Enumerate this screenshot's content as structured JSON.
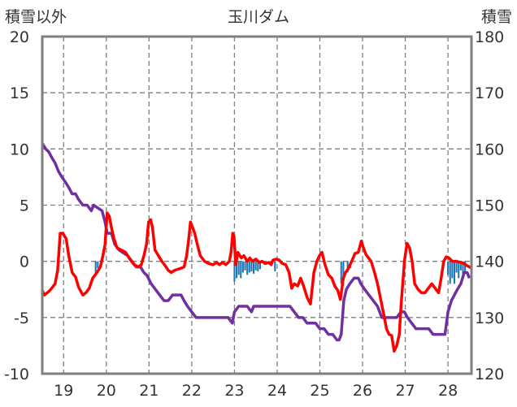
{
  "chart_data": {
    "type": "line",
    "title": "玉川ダム",
    "left_axis": {
      "label": "積雪以外",
      "ticks": [
        20,
        15,
        10,
        5,
        0,
        -5,
        -10
      ],
      "range": [
        -10,
        20
      ]
    },
    "right_axis": {
      "label": "積雪",
      "ticks": [
        180,
        170,
        160,
        150,
        140,
        130,
        120
      ],
      "range": [
        120,
        180
      ]
    },
    "x_axis": {
      "ticks": [
        "19",
        "20",
        "21",
        "22",
        "23",
        "24",
        "25",
        "26",
        "27",
        "28"
      ],
      "range": [
        18.5,
        28.55
      ]
    },
    "grid": true,
    "colors": {
      "red_series": "#ff0000",
      "purple_series": "#7030a0",
      "blue_series": "#1f77b4",
      "axis": "#7f7f7f"
    },
    "series": [
      {
        "axis": "left",
        "points": [
          [
            18.5,
            -2.6
          ],
          [
            18.55,
            -3.0
          ],
          [
            18.65,
            -2.7
          ],
          [
            18.72,
            -2.4
          ],
          [
            18.8,
            -2.0
          ],
          [
            18.86,
            -0.8
          ],
          [
            18.92,
            2.5
          ],
          [
            18.98,
            2.5
          ],
          [
            19.06,
            2.0
          ],
          [
            19.12,
            0.5
          ],
          [
            19.2,
            -1.0
          ],
          [
            19.28,
            -1.4
          ],
          [
            19.35,
            -2.3
          ],
          [
            19.45,
            -3.0
          ],
          [
            19.52,
            -2.8
          ],
          [
            19.6,
            -2.4
          ],
          [
            19.68,
            -1.5
          ],
          [
            19.78,
            -1.0
          ],
          [
            19.86,
            -0.5
          ],
          [
            19.92,
            0.5
          ],
          [
            19.97,
            1.5
          ],
          [
            20.02,
            4.3
          ],
          [
            20.07,
            4.0
          ],
          [
            20.12,
            3.0
          ],
          [
            20.18,
            2.0
          ],
          [
            20.25,
            1.2
          ],
          [
            20.35,
            1.0
          ],
          [
            20.45,
            0.8
          ],
          [
            20.55,
            0.2
          ],
          [
            20.65,
            -0.3
          ],
          [
            20.75,
            -0.5
          ],
          [
            20.82,
            -0.3
          ],
          [
            20.88,
            0.5
          ],
          [
            20.94,
            1.5
          ],
          [
            20.99,
            3.5
          ],
          [
            21.04,
            3.7
          ],
          [
            21.08,
            3.0
          ],
          [
            21.14,
            1.0
          ],
          [
            21.22,
            0.5
          ],
          [
            21.3,
            0.0
          ],
          [
            21.38,
            -0.4
          ],
          [
            21.45,
            -0.8
          ],
          [
            21.52,
            -1.0
          ],
          [
            21.6,
            -0.8
          ],
          [
            21.68,
            -0.7
          ],
          [
            21.76,
            -0.6
          ],
          [
            21.82,
            -0.5
          ],
          [
            21.88,
            0.5
          ],
          [
            21.93,
            2.0
          ],
          [
            21.97,
            3.5
          ],
          [
            22.02,
            3.0
          ],
          [
            22.07,
            2.5
          ],
          [
            22.13,
            1.5
          ],
          [
            22.2,
            0.5
          ],
          [
            22.3,
            0.0
          ],
          [
            22.4,
            -0.2
          ],
          [
            22.5,
            -0.3
          ],
          [
            22.58,
            -0.1
          ],
          [
            22.65,
            -0.3
          ],
          [
            22.72,
            -0.1
          ],
          [
            22.8,
            -0.3
          ],
          [
            22.88,
            0.0
          ],
          [
            22.92,
            0.8
          ],
          [
            22.96,
            2.5
          ],
          [
            22.99,
            2.2
          ],
          [
            23.03,
            -0.3
          ],
          [
            23.08,
            0.8
          ],
          [
            23.16,
            0.3
          ],
          [
            23.22,
            0.5
          ],
          [
            23.3,
            0.0
          ],
          [
            23.36,
            0.3
          ],
          [
            23.42,
            0.0
          ],
          [
            23.5,
            0.2
          ],
          [
            23.58,
            -0.1
          ],
          [
            23.65,
            0.0
          ],
          [
            23.72,
            -0.2
          ],
          [
            23.8,
            -0.1
          ],
          [
            23.86,
            -0.3
          ],
          [
            23.9,
            0.1
          ],
          [
            23.98,
            0.2
          ],
          [
            24.05,
            0.1
          ],
          [
            24.12,
            -0.2
          ],
          [
            24.2,
            -0.3
          ],
          [
            24.28,
            -1.0
          ],
          [
            24.34,
            -2.4
          ],
          [
            24.4,
            -2.0
          ],
          [
            24.48,
            -2.2
          ],
          [
            24.55,
            -1.5
          ],
          [
            24.62,
            -2.2
          ],
          [
            24.7,
            -3.2
          ],
          [
            24.78,
            -3.8
          ],
          [
            24.86,
            -1.0
          ],
          [
            24.93,
            0.0
          ],
          [
            24.99,
            0.5
          ],
          [
            25.05,
            0.8
          ],
          [
            25.12,
            -0.3
          ],
          [
            25.2,
            -1.2
          ],
          [
            25.28,
            -1.5
          ],
          [
            25.35,
            -2.2
          ],
          [
            25.42,
            -2.6
          ],
          [
            25.48,
            -3.4
          ],
          [
            25.55,
            -1.5
          ],
          [
            25.6,
            -1.0
          ],
          [
            25.66,
            -0.7
          ],
          [
            25.72,
            -0.2
          ],
          [
            25.78,
            0.3
          ],
          [
            25.82,
            0.7
          ],
          [
            25.9,
            0.8
          ],
          [
            25.97,
            1.8
          ],
          [
            26.02,
            1.2
          ],
          [
            26.08,
            0.6
          ],
          [
            26.14,
            0.3
          ],
          [
            26.2,
            0.0
          ],
          [
            26.28,
            -1.0
          ],
          [
            26.35,
            -2.0
          ],
          [
            26.42,
            -3.3
          ],
          [
            26.5,
            -4.8
          ],
          [
            26.56,
            -6.0
          ],
          [
            26.62,
            -6.5
          ],
          [
            26.68,
            -6.6
          ],
          [
            26.74,
            -8.0
          ],
          [
            26.8,
            -7.5
          ],
          [
            26.86,
            -6.5
          ],
          [
            26.9,
            -4.0
          ],
          [
            26.94,
            -2.0
          ],
          [
            26.98,
            0.0
          ],
          [
            27.04,
            1.6
          ],
          [
            27.1,
            1.2
          ],
          [
            27.16,
            0.0
          ],
          [
            27.22,
            -2.0
          ],
          [
            27.3,
            -2.5
          ],
          [
            27.38,
            -2.8
          ],
          [
            27.46,
            -2.8
          ],
          [
            27.54,
            -2.4
          ],
          [
            27.62,
            -2.0
          ],
          [
            27.7,
            -2.4
          ],
          [
            27.78,
            -2.8
          ],
          [
            27.84,
            -1.5
          ],
          [
            27.9,
            0.0
          ],
          [
            27.96,
            0.4
          ],
          [
            28.02,
            0.3
          ],
          [
            28.1,
            0.0
          ],
          [
            28.2,
            0.0
          ],
          [
            28.3,
            -0.1
          ],
          [
            28.38,
            -0.2
          ],
          [
            28.45,
            -0.4
          ],
          [
            28.55,
            -0.6
          ]
        ]
      },
      {
        "axis": "right",
        "points": [
          [
            18.5,
            161
          ],
          [
            18.58,
            160
          ],
          [
            18.65,
            159.5
          ],
          [
            18.72,
            158.5
          ],
          [
            18.8,
            157.5
          ],
          [
            18.88,
            156
          ],
          [
            18.96,
            155
          ],
          [
            19.05,
            154
          ],
          [
            19.13,
            153
          ],
          [
            19.2,
            152
          ],
          [
            19.28,
            152
          ],
          [
            19.35,
            151
          ],
          [
            19.45,
            150
          ],
          [
            19.55,
            150
          ],
          [
            19.65,
            149
          ],
          [
            19.7,
            150
          ],
          [
            19.8,
            149.5
          ],
          [
            19.9,
            149
          ],
          [
            19.97,
            147
          ],
          [
            20.02,
            145
          ],
          [
            20.06,
            145
          ],
          [
            20.12,
            145
          ],
          [
            20.2,
            143
          ],
          [
            20.3,
            142
          ],
          [
            20.4,
            141.5
          ],
          [
            20.5,
            141
          ],
          [
            20.6,
            140
          ],
          [
            20.7,
            139
          ],
          [
            20.8,
            139
          ],
          [
            20.88,
            138
          ],
          [
            20.95,
            137.5
          ],
          [
            21.05,
            136
          ],
          [
            21.15,
            135
          ],
          [
            21.25,
            134
          ],
          [
            21.35,
            133
          ],
          [
            21.45,
            133
          ],
          [
            21.55,
            134
          ],
          [
            21.65,
            134
          ],
          [
            21.75,
            134
          ],
          [
            21.82,
            133
          ],
          [
            21.9,
            132
          ],
          [
            22.0,
            131
          ],
          [
            22.1,
            130
          ],
          [
            22.3,
            130
          ],
          [
            22.5,
            130
          ],
          [
            22.7,
            130
          ],
          [
            22.85,
            130
          ],
          [
            22.95,
            129
          ],
          [
            23.0,
            131
          ],
          [
            23.1,
            132
          ],
          [
            23.2,
            132
          ],
          [
            23.3,
            132
          ],
          [
            23.4,
            131
          ],
          [
            23.45,
            132
          ],
          [
            23.5,
            132
          ],
          [
            23.7,
            132
          ],
          [
            23.9,
            132
          ],
          [
            24.1,
            132
          ],
          [
            24.3,
            132
          ],
          [
            24.4,
            131
          ],
          [
            24.5,
            130
          ],
          [
            24.6,
            130
          ],
          [
            24.7,
            129
          ],
          [
            24.8,
            129
          ],
          [
            24.9,
            129
          ],
          [
            25.0,
            128
          ],
          [
            25.1,
            128
          ],
          [
            25.2,
            127
          ],
          [
            25.3,
            127
          ],
          [
            25.4,
            126
          ],
          [
            25.45,
            126
          ],
          [
            25.5,
            127
          ],
          [
            25.56,
            133
          ],
          [
            25.62,
            135
          ],
          [
            25.7,
            136
          ],
          [
            25.8,
            137
          ],
          [
            25.9,
            137
          ],
          [
            25.96,
            136
          ],
          [
            26.05,
            135
          ],
          [
            26.15,
            134
          ],
          [
            26.25,
            133
          ],
          [
            26.35,
            132
          ],
          [
            26.45,
            130
          ],
          [
            26.55,
            130
          ],
          [
            26.7,
            130
          ],
          [
            26.8,
            130
          ],
          [
            26.9,
            131
          ],
          [
            26.98,
            131
          ],
          [
            27.05,
            130
          ],
          [
            27.15,
            129
          ],
          [
            27.25,
            128
          ],
          [
            27.35,
            128
          ],
          [
            27.45,
            128
          ],
          [
            27.55,
            128
          ],
          [
            27.65,
            127
          ],
          [
            27.75,
            127
          ],
          [
            27.85,
            127
          ],
          [
            27.93,
            127
          ],
          [
            28.0,
            131
          ],
          [
            28.08,
            133
          ],
          [
            28.15,
            134
          ],
          [
            28.22,
            135
          ],
          [
            28.3,
            136
          ],
          [
            28.38,
            138
          ],
          [
            28.45,
            138
          ],
          [
            28.5,
            137
          ]
        ]
      },
      {
        "axis": "left",
        "bars": [
          [
            19.75,
            -1.3
          ],
          [
            19.8,
            -0.6
          ],
          [
            23.0,
            -1.8
          ],
          [
            23.05,
            -1.5
          ],
          [
            23.1,
            -1.2
          ],
          [
            23.15,
            -1.5
          ],
          [
            23.2,
            -1.0
          ],
          [
            23.25,
            -0.8
          ],
          [
            23.3,
            -1.2
          ],
          [
            23.35,
            -1.0
          ],
          [
            23.4,
            -0.9
          ],
          [
            23.45,
            -1.1
          ],
          [
            23.5,
            -0.8
          ],
          [
            23.55,
            -0.9
          ],
          [
            23.6,
            -0.7
          ],
          [
            23.95,
            -0.9
          ],
          [
            25.5,
            -2.0
          ],
          [
            25.55,
            -1.7
          ],
          [
            25.65,
            -1.0
          ],
          [
            25.72,
            -0.6
          ],
          [
            28.0,
            -1.2
          ],
          [
            28.05,
            -2.0
          ],
          [
            28.1,
            -1.5
          ],
          [
            28.15,
            -2.0
          ],
          [
            28.2,
            -1.0
          ],
          [
            28.25,
            -1.5
          ],
          [
            28.3,
            -0.8
          ],
          [
            28.35,
            -1.2
          ],
          [
            28.4,
            -1.0
          ]
        ]
      }
    ]
  }
}
